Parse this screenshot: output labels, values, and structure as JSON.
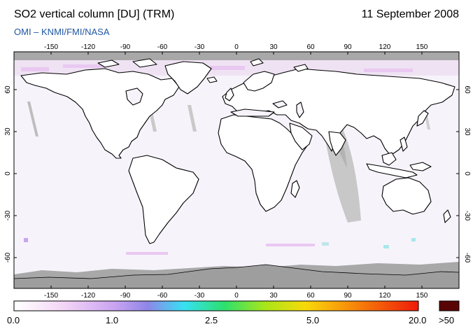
{
  "header": {
    "title": "SO2 vertical column [DU] (TRM)",
    "date": "11 September 2008",
    "subtitle": "OMI  –  KNMI/FMI/NASA"
  },
  "map": {
    "lon_ticks": [
      "-150",
      "-120",
      "-90",
      "-60",
      "-30",
      "0",
      "30",
      "60",
      "90",
      "120",
      "150"
    ],
    "lat_ticks": [
      "60",
      "30",
      "0",
      "-30",
      "-60"
    ],
    "no_data_color": "#a8a8a8",
    "land_outline_color": "#000000",
    "background_color": "#f7f3fb"
  },
  "colorbar": {
    "labels": [
      "0.0",
      "1.0",
      "2.5",
      "5.0",
      "20.0"
    ],
    "overflow_label": ">50",
    "overflow_color": "#5a0505",
    "colors": [
      "#ffffff",
      "#f4d6f6",
      "#c9a3f2",
      "#8f86e8",
      "#38e0f4",
      "#2ce06e",
      "#a8e61a",
      "#f8d90a",
      "#f7880a",
      "#ee1a0a"
    ]
  }
}
